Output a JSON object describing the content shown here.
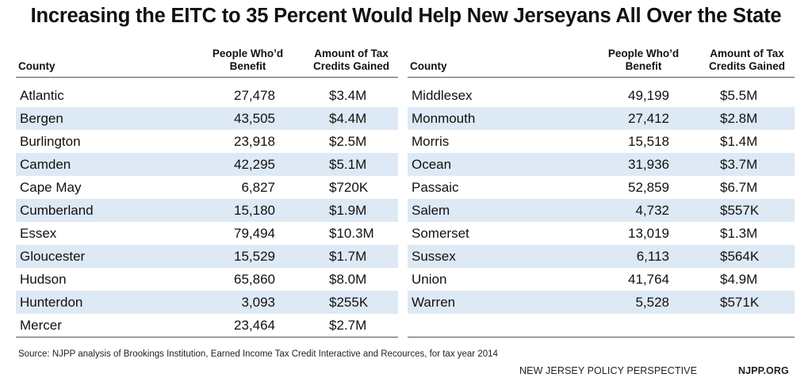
{
  "title": "Increasing the EITC to 35 Percent Would Help New Jerseyans All Over the State",
  "columns": {
    "county": "County",
    "people_line1": "People Who’d",
    "people_line2": "Benefit",
    "amount_line1": "Amount of Tax",
    "amount_line2": "Credits Gained"
  },
  "chart_data": {
    "type": "table",
    "title": "Increasing the EITC to 35 Percent Would Help New Jerseyans All Over the State",
    "headers": [
      "County",
      "People Who’d Benefit",
      "Amount of Tax Credits Gained"
    ],
    "left_rows": [
      {
        "county": "Atlantic",
        "people": "27,478",
        "amount": "$3.4M"
      },
      {
        "county": "Bergen",
        "people": "43,505",
        "amount": "$4.4M"
      },
      {
        "county": "Burlington",
        "people": "23,918",
        "amount": "$2.5M"
      },
      {
        "county": "Camden",
        "people": "42,295",
        "amount": "$5.1M"
      },
      {
        "county": "Cape May",
        "people": "6,827",
        "amount": "$720K"
      },
      {
        "county": "Cumberland",
        "people": "15,180",
        "amount": "$1.9M"
      },
      {
        "county": "Essex",
        "people": "79,494",
        "amount": "$10.3M"
      },
      {
        "county": "Gloucester",
        "people": "15,529",
        "amount": "$1.7M"
      },
      {
        "county": "Hudson",
        "people": "65,860",
        "amount": "$8.0M"
      },
      {
        "county": "Hunterdon",
        "people": "3,093",
        "amount": "$255K"
      },
      {
        "county": "Mercer",
        "people": "23,464",
        "amount": "$2.7M"
      }
    ],
    "right_rows": [
      {
        "county": "Middlesex",
        "people": "49,199",
        "amount": "$5.5M"
      },
      {
        "county": "Monmouth",
        "people": "27,412",
        "amount": "$2.8M"
      },
      {
        "county": "Morris",
        "people": "15,518",
        "amount": "$1.4M"
      },
      {
        "county": "Ocean",
        "people": "31,936",
        "amount": "$3.7M"
      },
      {
        "county": "Passaic",
        "people": "52,859",
        "amount": "$6.7M"
      },
      {
        "county": "Salem",
        "people": "4,732",
        "amount": "$557K"
      },
      {
        "county": "Somerset",
        "people": "13,019",
        "amount": "$1.3M"
      },
      {
        "county": "Sussex",
        "people": "6,113",
        "amount": "$564K"
      },
      {
        "county": "Union",
        "people": "41,764",
        "amount": "$4.9M"
      },
      {
        "county": "Warren",
        "people": "5,528",
        "amount": "$571K"
      }
    ]
  },
  "source": "Source: NJPP analysis of Brookings Institution, Earned Income Tax Credit Interactive and Recources, for tax year 2014",
  "org_name": "NEW JERSEY POLICY PERSPECTIVE",
  "org_site": "NJPP.ORG",
  "colors": {
    "row_shade": "#dde9f4",
    "rule": "#555555",
    "text": "#111111"
  }
}
